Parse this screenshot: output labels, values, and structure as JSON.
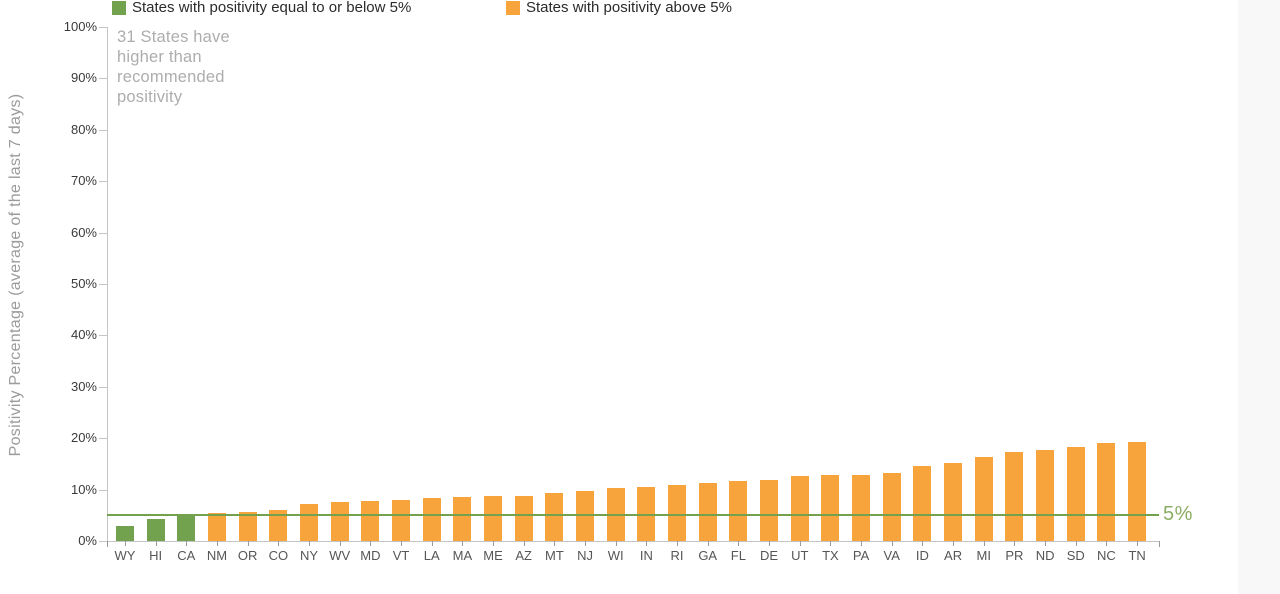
{
  "page": {
    "background_color": "#ffffff",
    "right_strip_color": "#f8f8f8"
  },
  "chart_data": {
    "type": "bar",
    "categories": [
      "WY",
      "HI",
      "CA",
      "NM",
      "OR",
      "CO",
      "NY",
      "WV",
      "MD",
      "VT",
      "LA",
      "MA",
      "ME",
      "AZ",
      "MT",
      "NJ",
      "WI",
      "IN",
      "RI",
      "GA",
      "FL",
      "DE",
      "UT",
      "TX",
      "PA",
      "VA",
      "ID",
      "AR",
      "MI",
      "PR",
      "ND",
      "SD",
      "NC",
      "TN"
    ],
    "values": [
      2.9,
      4.3,
      5.0,
      5.4,
      5.6,
      6.0,
      7.2,
      7.5,
      7.7,
      8.0,
      8.3,
      8.6,
      8.7,
      8.8,
      9.4,
      9.7,
      10.3,
      10.5,
      10.9,
      11.2,
      11.7,
      11.8,
      12.6,
      12.8,
      12.9,
      13.2,
      14.6,
      15.2,
      16.4,
      17.4,
      17.7,
      18.2,
      19.0,
      19.3
    ],
    "ylabel": "Positivity Percentage (average of the last 7 days)",
    "ylim": [
      0,
      100
    ],
    "ytick_labels": [
      "0%",
      "10%",
      "20%",
      "30%",
      "40%",
      "50%",
      "60%",
      "70%",
      "80%",
      "90%",
      "100%"
    ],
    "grid": false,
    "legend_position": "top",
    "legend": [
      {
        "label": "States with positivity equal to or below 5%",
        "color": "#73A24F"
      },
      {
        "label": "States with positivity above 5%",
        "color": "#F8A43C"
      }
    ],
    "annotation": "31 States have\nhigher than\nrecommended\npositivity",
    "threshold_line": {
      "value": 5,
      "label": "5%",
      "line_color": "#74A14D",
      "label_color": "#8BAC64"
    },
    "colors": {
      "at_or_below_threshold": "#73A24F",
      "above_threshold": "#F8A43C"
    }
  }
}
